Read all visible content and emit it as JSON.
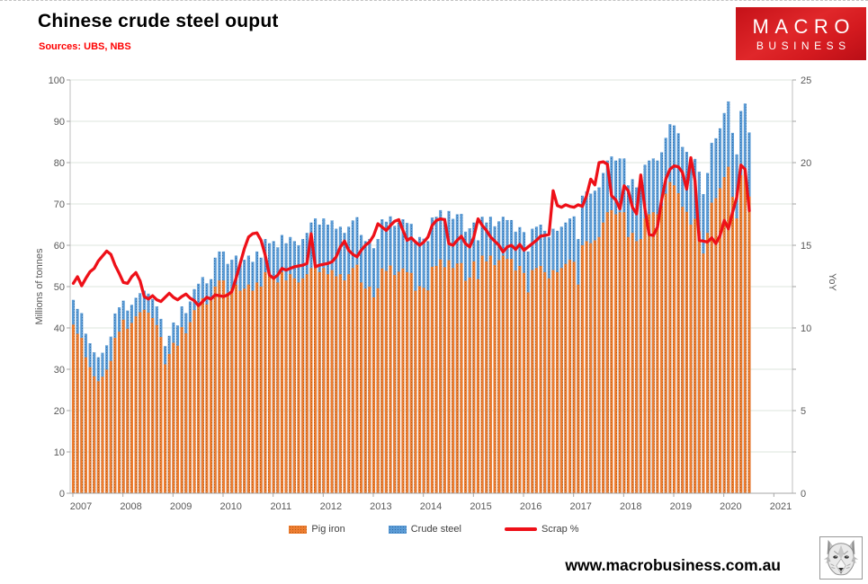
{
  "header": {
    "title": "Chinese crude steel ouput",
    "subtitle": "Sources: UBS, NBS"
  },
  "logo": {
    "line1": "MACRO",
    "line2": "BUSINESS"
  },
  "footer": {
    "website": "www.macrobusiness.com.au",
    "logo_icon": "wolf-sketch-icon"
  },
  "colors": {
    "pig_iron": "#ED7D31",
    "pig_iron_dot": "#b45a12",
    "crude_steel": "#5B9BD5",
    "crude_steel_dot": "#2f6da8",
    "scrap_line": "#ee1018",
    "gridline": "#dce4dc",
    "axis_line": "#bfbfbf",
    "axis_text": "#595959",
    "subtitle_red": "#fe0000"
  },
  "chart_data": {
    "type": "bar+line",
    "title": "Chinese crude steel ouput",
    "subtitle": "Sources: UBS, NBS",
    "grid": true,
    "legend_position": "bottom",
    "left_axis": {
      "label": "Millions of tonnes",
      "min": 0,
      "max": 100,
      "step": 10,
      "tick_labels": [
        "0",
        "10",
        "20",
        "30",
        "40",
        "50",
        "60",
        "70",
        "80",
        "90",
        "100"
      ]
    },
    "right_axis": {
      "label": "YoY",
      "min": 0,
      "max": 25,
      "step": 5,
      "tick_labels": [
        "0",
        "5",
        "10",
        "15",
        "20",
        "25"
      ]
    },
    "x_axis": {
      "tick_labels": [
        "2007",
        "2008",
        "2009",
        "2010",
        "2011",
        "2012",
        "2013",
        "2014",
        "2015",
        "2016",
        "2017",
        "2018",
        "2019",
        "2020",
        "2021"
      ],
      "start_month": "2007-01",
      "end_month": "2020-07",
      "frequency": "monthly"
    },
    "legend": [
      {
        "label": "Pig iron",
        "type": "bar",
        "color": "#ED7D31"
      },
      {
        "label": "Crude steel",
        "type": "bar",
        "color": "#5B9BD5"
      },
      {
        "label": "Scrap %",
        "type": "line",
        "color": "#ee1018"
      }
    ],
    "series": [
      {
        "name": "Pig iron",
        "axis": "left",
        "unit": "Mt",
        "values": [
          40.8,
          38.6,
          37.6,
          32.9,
          30.5,
          28.3,
          27.1,
          28.2,
          29.9,
          32.0,
          37.6,
          39.1,
          42.0,
          39.8,
          41.2,
          42.8,
          43.8,
          44.4,
          43.7,
          42.4,
          40.7,
          37.8,
          31.2,
          33.7,
          36.4,
          35.7,
          40.2,
          38.7,
          41.4,
          44.3,
          45.6,
          47.2,
          45.7,
          46.7,
          50.0,
          51.5,
          51.5,
          48.5,
          49.5,
          50.5,
          49.0,
          49.5,
          50.5,
          49.0,
          51.0,
          50.0,
          53.5,
          52.5,
          52.5,
          51.0,
          53.5,
          51.5,
          53.0,
          52.0,
          51.0,
          52.0,
          53.0,
          54.5,
          55.0,
          53.5,
          54.5,
          53.0,
          54.0,
          52.5,
          53.0,
          51.5,
          53.0,
          54.5,
          55.3,
          51.0,
          49.5,
          50.0,
          47.4,
          49.6,
          54.4,
          53.8,
          55.1,
          52.8,
          53.6,
          54.4,
          53.5,
          53.3,
          49.0,
          50.1,
          49.7,
          49.1,
          54.8,
          55.0,
          56.6,
          54.7,
          56.4,
          54.5,
          55.6,
          55.7,
          51.4,
          52.2,
          56.1,
          51.8,
          57.5,
          56.1,
          57.5,
          55.2,
          56.4,
          57.5,
          56.7,
          56.7,
          53.9,
          55.0,
          53.3,
          48.6,
          54.0,
          54.5,
          55.0,
          53.5,
          52.0,
          54.0,
          53.5,
          54.5,
          55.5,
          56.5,
          56.0,
          50.5,
          60.0,
          61.0,
          60.5,
          61.2,
          62.0,
          65.5,
          68.0,
          68.5,
          67.5,
          68.0,
          68.0,
          62.0,
          63.0,
          61.0,
          61.5,
          66.5,
          67.5,
          68.0,
          67.5,
          69.5,
          72.5,
          75.3,
          74.5,
          72.6,
          69.3,
          68.1,
          65.0,
          66.4,
          63.3,
          58.0,
          63.0,
          70.3,
          71.4,
          73.8,
          76.5,
          79.0,
          71.7,
          66.5,
          77.0,
          78.5,
          71.8
        ]
      },
      {
        "name": "Crude steel",
        "axis": "left",
        "unit": "Mt",
        "values": [
          46.8,
          44.6,
          43.6,
          38.6,
          36.3,
          34.1,
          32.9,
          34.0,
          35.8,
          37.9,
          43.5,
          45.0,
          46.6,
          44.2,
          45.6,
          47.3,
          48.4,
          49.0,
          48.3,
          47.0,
          45.2,
          42.2,
          35.6,
          38.1,
          41.3,
          40.6,
          45.2,
          43.6,
          46.4,
          49.4,
          50.7,
          52.3,
          50.8,
          51.8,
          57.0,
          58.5,
          58.5,
          55.5,
          56.5,
          57.5,
          56.0,
          56.5,
          57.5,
          56.0,
          58.5,
          57.0,
          61.5,
          60.5,
          61.0,
          59.5,
          62.5,
          60.5,
          62.0,
          61.0,
          60.0,
          61.5,
          63.0,
          65.5,
          66.5,
          65.0,
          66.5,
          65.0,
          66.0,
          64.0,
          64.5,
          63.0,
          64.5,
          66.0,
          66.8,
          62.5,
          61.0,
          61.5,
          59.3,
          61.5,
          66.3,
          65.7,
          67.0,
          64.7,
          65.5,
          66.3,
          65.4,
          65.2,
          60.9,
          62.0,
          61.6,
          61.0,
          66.7,
          66.9,
          68.5,
          66.6,
          68.3,
          66.4,
          67.5,
          67.6,
          63.3,
          64.1,
          65.5,
          61.2,
          66.9,
          65.5,
          66.9,
          64.6,
          65.8,
          66.9,
          66.1,
          66.1,
          63.3,
          64.4,
          63.2,
          58.5,
          64.0,
          64.5,
          65.0,
          63.5,
          62.0,
          64.0,
          63.5,
          64.5,
          65.5,
          66.5,
          67.0,
          61.5,
          72.0,
          73.0,
          72.5,
          73.2,
          74.0,
          77.5,
          80.5,
          81.5,
          80.5,
          81.0,
          81.0,
          74.5,
          76.0,
          74.0,
          74.5,
          79.5,
          80.5,
          81.0,
          80.5,
          82.5,
          86.0,
          89.3,
          89.0,
          87.1,
          83.8,
          82.6,
          79.5,
          80.9,
          77.8,
          72.4,
          77.5,
          84.8,
          85.9,
          88.3,
          92.0,
          94.8,
          87.2,
          82.0,
          92.5,
          94.3,
          87.3
        ]
      },
      {
        "name": "Scrap %",
        "axis": "right",
        "unit": "%",
        "values": [
          12.7,
          13.1,
          12.55,
          13.0,
          13.4,
          13.6,
          14.05,
          14.35,
          14.65,
          14.45,
          13.8,
          13.3,
          12.75,
          12.7,
          13.1,
          13.35,
          12.85,
          11.9,
          11.75,
          11.95,
          11.7,
          11.6,
          11.85,
          12.1,
          11.85,
          11.7,
          11.9,
          12.05,
          11.8,
          11.65,
          11.35,
          11.6,
          11.85,
          11.75,
          12.0,
          11.95,
          11.9,
          12.0,
          12.2,
          13.0,
          13.9,
          14.8,
          15.5,
          15.7,
          15.75,
          15.3,
          14.4,
          13.2,
          13.0,
          13.2,
          13.6,
          13.5,
          13.6,
          13.7,
          13.75,
          13.8,
          13.9,
          15.7,
          13.7,
          13.8,
          13.85,
          13.9,
          14.0,
          14.3,
          14.9,
          15.25,
          14.7,
          14.45,
          14.3,
          14.7,
          15.0,
          15.2,
          15.6,
          16.3,
          16.1,
          15.9,
          16.2,
          16.45,
          16.55,
          15.9,
          15.3,
          15.45,
          15.2,
          15.0,
          15.2,
          15.5,
          16.2,
          16.5,
          16.6,
          16.55,
          15.1,
          15.0,
          15.3,
          15.55,
          15.1,
          14.9,
          15.5,
          16.6,
          16.2,
          15.9,
          15.5,
          15.25,
          15.0,
          14.6,
          14.9,
          15.0,
          14.75,
          15.05,
          14.7,
          14.9,
          15.1,
          15.3,
          15.55,
          15.6,
          15.65,
          18.3,
          17.4,
          17.3,
          17.45,
          17.35,
          17.3,
          17.45,
          17.35,
          18.0,
          19.0,
          18.65,
          20.0,
          20.05,
          19.9,
          18.0,
          17.75,
          17.2,
          18.6,
          18.3,
          17.3,
          16.9,
          19.25,
          17.2,
          15.65,
          15.6,
          16.1,
          17.75,
          19.0,
          19.6,
          19.8,
          19.75,
          19.4,
          18.4,
          20.3,
          18.9,
          15.3,
          15.25,
          15.2,
          15.45,
          15.1,
          15.6,
          16.5,
          16.0,
          17.0,
          17.9,
          19.85,
          19.6,
          17.1
        ]
      }
    ]
  }
}
